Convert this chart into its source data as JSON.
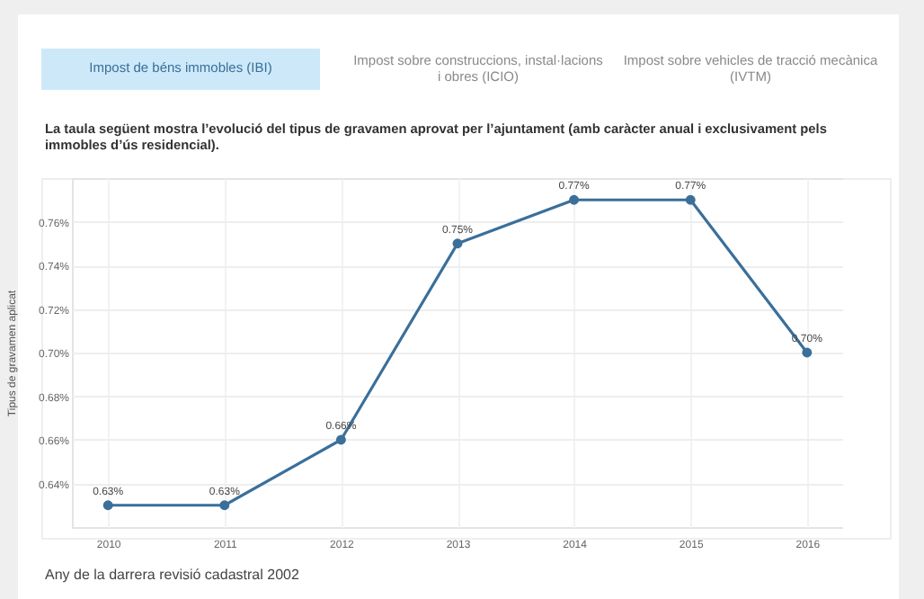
{
  "chart_data": {
    "type": "line",
    "title": "La taula següent mostra l’evolució del tipus de gravamen aprovat per l’ajuntament (amb caràcter anual i exclusivament pels immobles d’ús residencial).",
    "ylabel": "Tipus de gravamen aplicat",
    "annotations": [
      "Impost de béns immobles (IBI)",
      "Impost sobre construccions, instal·lacions i obres (ICIO)",
      "Impost sobre vehicles de tracció mecànica (IVTM)",
      "Any de la darrera revisió cadastral 2002"
    ],
    "categories": [
      "2010",
      "2011",
      "2012",
      "2013",
      "2014",
      "2015",
      "2016"
    ],
    "series": [
      {
        "color": "#3a6f9a",
        "values": [
          0.63,
          0.63,
          0.66,
          0.75,
          0.77,
          0.77,
          0.7
        ]
      }
    ],
    "value_labels": [
      "0.63%",
      "0.63%",
      "0.66%",
      "0.75%",
      "0.77%",
      "0.77%",
      "0.70%"
    ],
    "ylim": [
      0.62,
      0.78
    ],
    "yticks": [
      {
        "value": 0.64,
        "label": "0.64%"
      },
      {
        "value": 0.66,
        "label": "0.66%"
      },
      {
        "value": 0.68,
        "label": "0.68%"
      },
      {
        "value": 0.7,
        "label": "0.70%"
      },
      {
        "value": 0.72,
        "label": "0.72%"
      },
      {
        "value": 0.74,
        "label": "0.74%"
      },
      {
        "value": 0.76,
        "label": "0.76%"
      }
    ],
    "grid": true,
    "marker": "circle",
    "line_style": "solid"
  }
}
